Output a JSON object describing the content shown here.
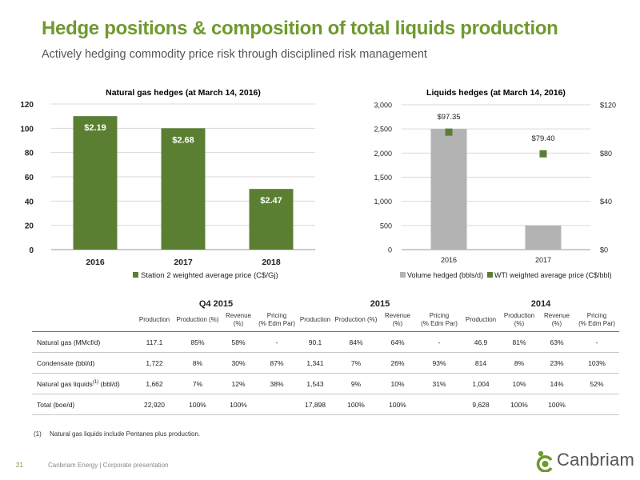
{
  "header": {
    "title": "Hedge positions & composition of total liquids production",
    "subtitle": "Actively hedging commodity price risk through disciplined risk management"
  },
  "chart_data": [
    {
      "type": "bar",
      "title": "Natural gas hedges (at March 14, 2016)",
      "categories": [
        "2016",
        "2017",
        "2018"
      ],
      "series": [
        {
          "name": "Station 2 weighted average price (C$/Gj)",
          "values": [
            110,
            100,
            50
          ],
          "color": "#5a7f32"
        }
      ],
      "data_labels": [
        "$2.19",
        "$2.68",
        "$2.47"
      ],
      "ylim": [
        0,
        120
      ],
      "yticks": [
        "0",
        "20",
        "40",
        "60",
        "80",
        "100",
        "120"
      ],
      "grid": true,
      "legend": "bottom"
    },
    {
      "type": "bar",
      "title": "Liquids hedges (at March 14, 2016)",
      "categories": [
        "2016",
        "2017"
      ],
      "series": [
        {
          "name": "Volume hedged (bbls/d)",
          "values": [
            2500,
            500
          ],
          "color": "#b3b3b3",
          "axis": "left"
        },
        {
          "name": "WTI weighted average price (C$/bbl)",
          "values": [
            97.35,
            79.4
          ],
          "color": "#5a7f32",
          "axis": "right",
          "marker": "square"
        }
      ],
      "data_labels": [
        "$97.35",
        "$79.40"
      ],
      "ylim": [
        0,
        3000
      ],
      "yticks": [
        "0",
        "500",
        "1,000",
        "1,500",
        "2,000",
        "2,500",
        "3,000"
      ],
      "y2lim": [
        0,
        120
      ],
      "y2ticks": [
        "$0",
        "$40",
        "$80",
        "$120"
      ],
      "grid": true,
      "legend": "bottom"
    }
  ],
  "table": {
    "groups": [
      "Q4 2015",
      "2015",
      "2014"
    ],
    "headers": [
      "Production",
      "Production (%)",
      "Revenue (%)",
      "Pricing\n(% Edm Par)",
      "Production",
      "Production (%)",
      "Revenue (%)",
      "Pricing\n(% Edm Par)",
      "Production",
      "Production (%)",
      "Revenue (%)",
      "Pricing\n(% Edm Par)"
    ],
    "rows": [
      {
        "label": "Natural gas (MMcf/d)",
        "label_sup": "",
        "label_suffix": "",
        "cells": [
          "117.1",
          "85%",
          "58%",
          "-",
          "90.1",
          "84%",
          "64%",
          "-",
          "46.9",
          "81%",
          "63%",
          "-"
        ]
      },
      {
        "label": "Condensate (bbl/d)",
        "label_sup": "",
        "label_suffix": "",
        "cells": [
          "1,722",
          "8%",
          "30%",
          "87%",
          "1,341",
          "7%",
          "26%",
          "93%",
          "814",
          "8%",
          "23%",
          "103%"
        ]
      },
      {
        "label": "Natural gas liquids",
        "label_sup": "(1)",
        "label_suffix": " (bbl/d)",
        "cells": [
          "1,662",
          "7%",
          "12%",
          "38%",
          "1,543",
          "9%",
          "10%",
          "31%",
          "1,004",
          "10%",
          "14%",
          "52%"
        ]
      },
      {
        "label": "Total (boe/d)",
        "label_sup": "",
        "label_suffix": "",
        "cells": [
          "22,920",
          "100%",
          "100%",
          "",
          "17,898",
          "100%",
          "100%",
          "",
          "9,628",
          "100%",
          "100%",
          ""
        ]
      }
    ]
  },
  "footnote": {
    "num": "(1)",
    "text": "Natural gas liquids include Pentanes plus production."
  },
  "footer": {
    "page": "21",
    "text": "Canbriam Energy  |  Corporate presentation",
    "logo_text": "Canbriam"
  },
  "colors": {
    "accent": "#6e9a2e",
    "bar_green": "#5a7f32",
    "bar_grey": "#b3b3b3"
  }
}
